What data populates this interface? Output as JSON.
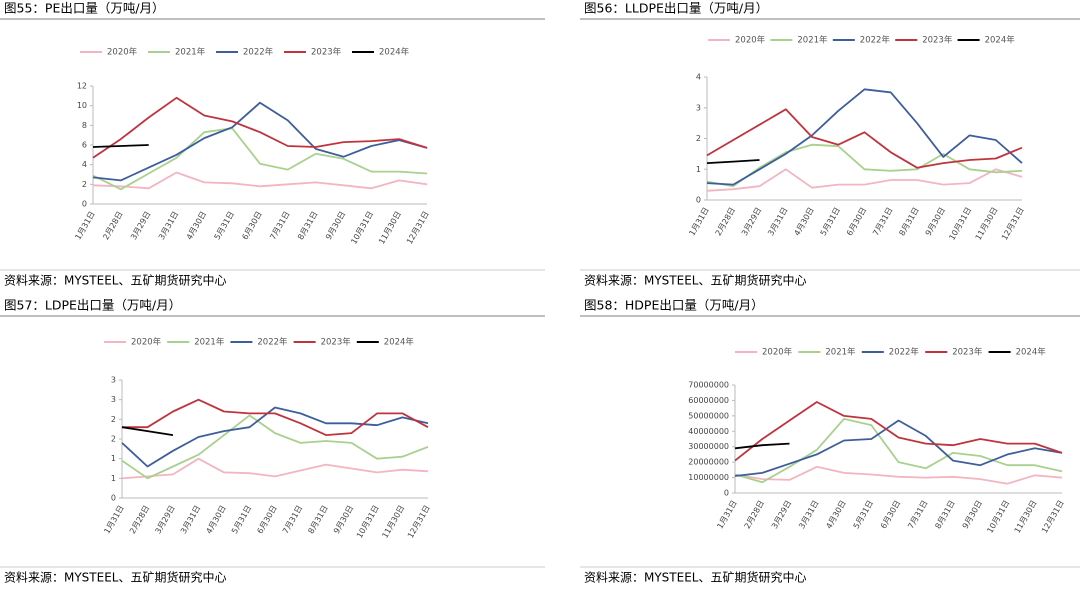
{
  "chart_data": [
    {
      "type": "line",
      "title": "图55：PE出口量（万吨/月）",
      "source": "资料来源：MYSTEEL、五矿期货研究中心",
      "categories": [
        "1月31日",
        "2月28日",
        "3月29日",
        "3月31日",
        "4月30日",
        "5月31日",
        "6月30日",
        "7月31日",
        "8月31日",
        "9月30日",
        "10月31日",
        "11月30日",
        "12月31日"
      ],
      "ylim": [
        0,
        12
      ],
      "yticks": [
        0,
        2,
        4,
        6,
        8,
        10,
        12
      ],
      "series": [
        {
          "name": "2020年",
          "color": "#f2b5c1",
          "values": [
            1.9,
            1.8,
            1.6,
            3.2,
            2.2,
            2.1,
            1.8,
            2.0,
            2.2,
            1.9,
            1.6,
            2.4,
            2.0
          ]
        },
        {
          "name": "2021年",
          "color": "#a9d18e",
          "values": [
            2.9,
            1.5,
            3.1,
            4.7,
            7.3,
            7.7,
            4.1,
            3.5,
            5.1,
            4.6,
            3.3,
            3.3,
            3.1
          ]
        },
        {
          "name": "2022年",
          "color": "#3d5e9c",
          "values": [
            2.7,
            2.4,
            3.7,
            5.0,
            6.7,
            7.8,
            10.3,
            8.5,
            5.6,
            4.8,
            5.9,
            6.5,
            5.7
          ]
        },
        {
          "name": "2023年",
          "color": "#c0333d",
          "values": [
            4.7,
            6.6,
            8.8,
            10.8,
            9.0,
            8.4,
            7.3,
            5.9,
            5.8,
            6.3,
            6.4,
            6.6,
            5.7
          ]
        },
        {
          "name": "2024年",
          "color": "#000000",
          "values": [
            5.8,
            5.9,
            6.0,
            null,
            null,
            null,
            null,
            null,
            null,
            null,
            null,
            null,
            null
          ]
        }
      ]
    },
    {
      "type": "line",
      "title": "图56：LLDPE出口量（万吨/月）",
      "source": "资料来源：MYSTEEL、五矿期货研究中心",
      "categories": [
        "1月31日",
        "2月28日",
        "3月29日",
        "3月31日",
        "4月30日",
        "5月31日",
        "6月30日",
        "7月31日",
        "8月31日",
        "9月30日",
        "10月31日",
        "11月30日",
        "12月31日"
      ],
      "ylim": [
        0,
        4
      ],
      "yticks": [
        0,
        1,
        2,
        3,
        4
      ],
      "series": [
        {
          "name": "2020年",
          "color": "#f2b5c1",
          "values": [
            0.3,
            0.35,
            0.45,
            1.0,
            0.4,
            0.5,
            0.5,
            0.65,
            0.65,
            0.5,
            0.55,
            1.0,
            0.75
          ]
        },
        {
          "name": "2021年",
          "color": "#a9d18e",
          "values": [
            0.6,
            0.45,
            1.05,
            1.55,
            1.8,
            1.75,
            1.0,
            0.95,
            1.0,
            1.5,
            1.0,
            0.9,
            0.95
          ]
        },
        {
          "name": "2022年",
          "color": "#3d5e9c",
          "values": [
            0.55,
            0.5,
            1.0,
            1.5,
            2.1,
            2.9,
            3.6,
            3.5,
            2.5,
            1.4,
            2.1,
            1.95,
            1.2
          ]
        },
        {
          "name": "2023年",
          "color": "#c0333d",
          "values": [
            1.45,
            1.95,
            2.45,
            2.95,
            2.05,
            1.8,
            2.2,
            1.55,
            1.05,
            1.2,
            1.3,
            1.35,
            1.7
          ]
        },
        {
          "name": "2024年",
          "color": "#000000",
          "values": [
            1.2,
            1.25,
            1.3,
            null,
            null,
            null,
            null,
            null,
            null,
            null,
            null,
            null,
            null
          ]
        }
      ]
    },
    {
      "type": "line",
      "title": "图57：LDPE出口量（万吨/月）",
      "source": "资料来源：MYSTEEL、五矿期货研究中心",
      "categories": [
        "1月31日",
        "2月28日",
        "3月29日",
        "3月31日",
        "4月30日",
        "5月31日",
        "6月30日",
        "7月31日",
        "8月31日",
        "9月30日",
        "10月31日",
        "11月30日",
        "12月31日"
      ],
      "ylim": [
        0,
        3
      ],
      "yticks": [
        0,
        {
          "value": 0.5,
          "label": "1"
        },
        1,
        {
          "value": 1.5,
          "label": "2"
        },
        2,
        {
          "value": 2.5,
          "label": "3"
        },
        3
      ],
      "series": [
        {
          "name": "2020年",
          "color": "#f2b5c1",
          "values": [
            0.5,
            0.55,
            0.6,
            1.0,
            0.65,
            0.63,
            0.55,
            0.7,
            0.85,
            0.75,
            0.65,
            0.72,
            0.68
          ]
        },
        {
          "name": "2021年",
          "color": "#a9d18e",
          "values": [
            0.95,
            0.5,
            0.8,
            1.1,
            1.6,
            2.1,
            1.65,
            1.4,
            1.45,
            1.4,
            1.0,
            1.05,
            1.3
          ]
        },
        {
          "name": "2022年",
          "color": "#3d5e9c",
          "values": [
            1.4,
            0.8,
            1.2,
            1.55,
            1.7,
            1.8,
            2.3,
            2.15,
            1.9,
            1.9,
            1.85,
            2.05,
            1.9
          ]
        },
        {
          "name": "2023年",
          "color": "#c0333d",
          "values": [
            1.8,
            1.8,
            2.2,
            2.5,
            2.2,
            2.15,
            2.15,
            1.9,
            1.6,
            1.65,
            2.15,
            2.15,
            1.8
          ]
        },
        {
          "name": "2024年",
          "color": "#000000",
          "values": [
            1.8,
            1.7,
            1.6,
            null,
            null,
            null,
            null,
            null,
            null,
            null,
            null,
            null,
            null
          ]
        }
      ]
    },
    {
      "type": "line",
      "title": "图58：HDPE出口量（万吨/月）",
      "source": "资料来源：MYSTEEL、五矿期货研究中心",
      "categories": [
        "1月31日",
        "2月28日",
        "3月29日",
        "3月31日",
        "4月30日",
        "5月31日",
        "6月30日",
        "7月31日",
        "8月31日",
        "9月30日",
        "10月31日",
        "11月30日",
        "12月31日"
      ],
      "ylim": [
        0,
        70000000
      ],
      "yticks": [
        0,
        10000000,
        20000000,
        30000000,
        40000000,
        50000000,
        60000000,
        70000000
      ],
      "series": [
        {
          "name": "2020年",
          "color": "#f2b5c1",
          "values": [
            12000000,
            9000000,
            8500000,
            17000000,
            13000000,
            12000000,
            10500000,
            10000000,
            10500000,
            9000000,
            6000000,
            11500000,
            10000000
          ]
        },
        {
          "name": "2021年",
          "color": "#a9d18e",
          "values": [
            12000000,
            7000000,
            17000000,
            28000000,
            48000000,
            44000000,
            20000000,
            16000000,
            26000000,
            24000000,
            18000000,
            18000000,
            14000000
          ]
        },
        {
          "name": "2022年",
          "color": "#3d5e9c",
          "values": [
            11000000,
            13000000,
            19000000,
            25000000,
            34000000,
            35000000,
            47000000,
            37000000,
            21000000,
            18000000,
            25000000,
            29000000,
            26000000
          ]
        },
        {
          "name": "2023年",
          "color": "#c0333d",
          "values": [
            21000000,
            35000000,
            47000000,
            59000000,
            50000000,
            48000000,
            36000000,
            32000000,
            31000000,
            35000000,
            32000000,
            32000000,
            26000000
          ]
        },
        {
          "name": "2024年",
          "color": "#000000",
          "values": [
            29000000,
            31000000,
            32000000,
            null,
            null,
            null,
            null,
            null,
            null,
            null,
            null,
            null,
            null
          ]
        }
      ]
    }
  ]
}
